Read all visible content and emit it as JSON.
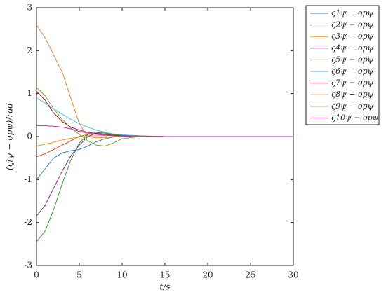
{
  "chart_data": {
    "type": "line",
    "xlabel": "t/s",
    "ylabel": "(ςiψ − opψ)/rad",
    "x": [
      0,
      1,
      2,
      3,
      4,
      5,
      6,
      7,
      8,
      9,
      10,
      12,
      15,
      20,
      25,
      30
    ],
    "xlim": [
      0,
      30
    ],
    "xticks": [
      0,
      5,
      10,
      15,
      20,
      25,
      30
    ],
    "ylim": [
      -3,
      3
    ],
    "yticks": [
      -3,
      -2,
      -1,
      0,
      1,
      2,
      3
    ],
    "legend": "outside-right",
    "series": [
      {
        "name": "ς1ψ − opψ",
        "color": "#2f7fb5",
        "values": [
          -1.0,
          -0.75,
          -0.5,
          -0.38,
          -0.33,
          -0.3,
          -0.22,
          -0.12,
          -0.05,
          -0.01,
          0.01,
          0.01,
          0,
          0,
          0,
          0
        ]
      },
      {
        "name": "ς2ψ − opψ",
        "color": "#d9541a",
        "values": [
          -0.47,
          -0.4,
          -0.3,
          -0.2,
          -0.1,
          0.0,
          0.05,
          0.06,
          0.05,
          0.03,
          0.02,
          0.01,
          0,
          0,
          0,
          0
        ]
      },
      {
        "name": "ς3ψ − opψ",
        "color": "#f0a030",
        "values": [
          -0.22,
          -0.18,
          -0.13,
          -0.08,
          -0.04,
          -0.01,
          0.01,
          0.02,
          0.02,
          0.02,
          0.01,
          0.01,
          0,
          0,
          0,
          0
        ]
      },
      {
        "name": "ς4ψ − opψ",
        "color": "#7e2f8e",
        "values": [
          -1.85,
          -1.6,
          -1.2,
          -0.8,
          -0.45,
          -0.2,
          0.0,
          0.08,
          0.08,
          0.05,
          0.03,
          0.01,
          0,
          0,
          0,
          0
        ]
      },
      {
        "name": "ς5ψ − opψ",
        "color": "#77ac30",
        "values": [
          1.15,
          0.95,
          0.65,
          0.4,
          0.2,
          0.05,
          -0.1,
          -0.2,
          -0.22,
          -0.15,
          -0.05,
          0,
          0,
          0,
          0,
          0
        ]
      },
      {
        "name": "ς6ψ − opψ",
        "color": "#4dbeee",
        "values": [
          0.9,
          0.78,
          0.65,
          0.52,
          0.4,
          0.3,
          0.22,
          0.15,
          0.1,
          0.06,
          0.04,
          0.02,
          0,
          0,
          0,
          0
        ]
      },
      {
        "name": "ς7ψ − opψ",
        "color": "#a2142f",
        "values": [
          1.05,
          0.85,
          0.55,
          0.35,
          0.22,
          0.15,
          0.1,
          0.07,
          0.05,
          0.03,
          0.02,
          0.01,
          0,
          0,
          0,
          0
        ]
      },
      {
        "name": "ς8ψ − opψ",
        "color": "#e8883a",
        "values": [
          2.6,
          2.3,
          1.9,
          1.5,
          0.9,
          0.3,
          0.0,
          -0.03,
          -0.02,
          0,
          0.01,
          0.01,
          0,
          0,
          0,
          0
        ]
      },
      {
        "name": "ς9ψ − opψ",
        "color": "#3a9a3a",
        "values": [
          -2.45,
          -2.2,
          -1.7,
          -1.1,
          -0.55,
          -0.15,
          0.05,
          0.1,
          0.08,
          0.05,
          0.03,
          0.01,
          0,
          0,
          0,
          0
        ]
      },
      {
        "name": "ς10ψ − opψ",
        "color": "#c030a8",
        "values": [
          0.25,
          0.25,
          0.24,
          0.22,
          0.18,
          0.12,
          0.08,
          0.05,
          0.03,
          0.02,
          0.01,
          0,
          0,
          0,
          0,
          0
        ]
      }
    ]
  }
}
